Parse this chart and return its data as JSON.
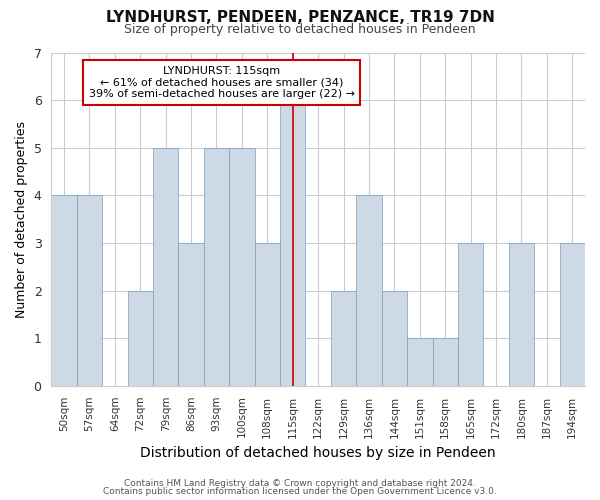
{
  "title": "LYNDHURST, PENDEEN, PENZANCE, TR19 7DN",
  "subtitle": "Size of property relative to detached houses in Pendeen",
  "xlabel": "Distribution of detached houses by size in Pendeen",
  "ylabel": "Number of detached properties",
  "bar_color": "#cdd9e5",
  "highlight_color": "#cdd9e5",
  "bar_edge_color": "#7a9cbf",
  "categories": [
    "50sqm",
    "57sqm",
    "64sqm",
    "72sqm",
    "79sqm",
    "86sqm",
    "93sqm",
    "100sqm",
    "108sqm",
    "115sqm",
    "122sqm",
    "129sqm",
    "136sqm",
    "144sqm",
    "151sqm",
    "158sqm",
    "165sqm",
    "172sqm",
    "180sqm",
    "187sqm",
    "194sqm"
  ],
  "values": [
    4,
    4,
    0,
    2,
    5,
    3,
    5,
    5,
    3,
    6,
    0,
    2,
    4,
    2,
    1,
    1,
    3,
    0,
    3,
    0,
    3
  ],
  "highlight_index": 9,
  "ylim": [
    0,
    7
  ],
  "yticks": [
    0,
    1,
    2,
    3,
    4,
    5,
    6,
    7
  ],
  "annotation_title": "LYNDHURST: 115sqm",
  "annotation_line1": "← 61% of detached houses are smaller (34)",
  "annotation_line2": "39% of semi-detached houses are larger (22) →",
  "vline_color": "#cc0000",
  "footer_line1": "Contains HM Land Registry data © Crown copyright and database right 2024.",
  "footer_line2": "Contains public sector information licensed under the Open Government Licence v3.0.",
  "background_color": "#ffffff",
  "plot_background": "#ffffff",
  "grid_color": "#cccccc"
}
